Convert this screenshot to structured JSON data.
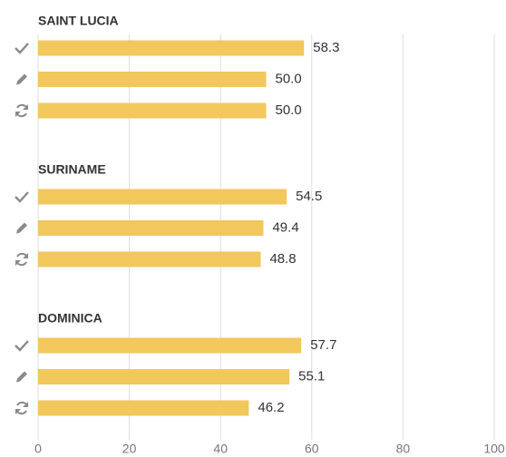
{
  "chart_data": {
    "type": "bar",
    "orientation": "horizontal",
    "categories": [
      "SAINT LUCIA",
      "SURINAME",
      "DOMINICA"
    ],
    "series": [
      {
        "color": "#f2c75c",
        "values": [
          58.3,
          54.5,
          57.7
        ],
        "value_labels": [
          "58.3",
          "54.5",
          "57.7"
        ]
      },
      {
        "color": "#f2c75c",
        "values": [
          50.0,
          49.4,
          55.1
        ],
        "value_labels": [
          "50.0",
          "49.4",
          "55.1"
        ]
      },
      {
        "color": "#f2c75c",
        "values": [
          50.0,
          48.8,
          46.2
        ],
        "value_labels": [
          "50.0",
          "48.8",
          "46.2"
        ]
      }
    ],
    "xlim": [
      0,
      100
    ],
    "xticks": [
      0,
      20,
      40,
      60,
      80,
      100
    ],
    "grid": true
  }
}
